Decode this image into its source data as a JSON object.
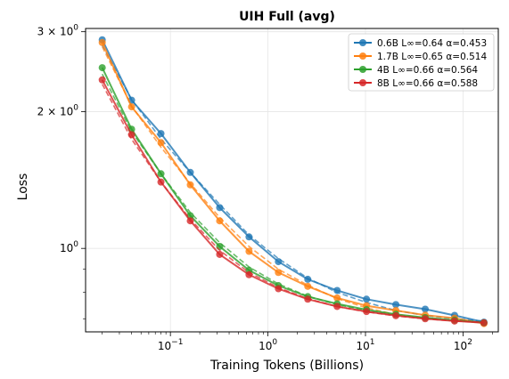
{
  "chart_data": {
    "type": "line",
    "title": "UIH Full (avg)",
    "xlabel": "Training Tokens (Billions)",
    "ylabel": "Loss",
    "xscale": "log",
    "yscale": "log",
    "xlim": [
      0.0135,
      230
    ],
    "ylim": [
      0.655,
      3.05
    ],
    "grid": true,
    "legend_position": "top-right",
    "x_ticks": [
      {
        "value": 0.1,
        "base": "10",
        "exp": "−1"
      },
      {
        "value": 1,
        "base": "10",
        "exp": "0"
      },
      {
        "value": 10,
        "base": "10",
        "exp": "1"
      },
      {
        "value": 100,
        "base": "10",
        "exp": "2"
      }
    ],
    "y_ticks": [
      {
        "value": 1,
        "base": "10",
        "exp": "0"
      },
      {
        "value": 2,
        "base": "2 × 10",
        "exp": "0"
      },
      {
        "value": 3,
        "base": "3 × 10",
        "exp": "0"
      }
    ],
    "x": [
      0.02,
      0.04,
      0.08,
      0.16,
      0.32,
      0.64,
      1.28,
      2.56,
      5.12,
      10.24,
      20.48,
      40.96,
      81.92,
      163.84
    ],
    "series": [
      {
        "name": "0.6B L∞=0.64 α=0.453",
        "color": "#1f77b4",
        "values": [
          2.88,
          2.12,
          1.79,
          1.47,
          1.23,
          1.06,
          0.935,
          0.855,
          0.808,
          0.773,
          0.752,
          0.735,
          0.712,
          0.688
        ],
        "fit": [
          2.8,
          2.13,
          1.74,
          1.47,
          1.25,
          1.07,
          0.95,
          0.86,
          0.8,
          0.76,
          0.73,
          0.712,
          0.7,
          0.692
        ]
      },
      {
        "name": "1.7B L∞=0.65 α=0.514",
        "color": "#ff7f0e",
        "values": [
          2.84,
          2.05,
          1.71,
          1.38,
          1.15,
          0.985,
          0.885,
          0.825,
          0.778,
          0.748,
          0.73,
          0.713,
          0.702,
          0.683
        ],
        "fit": [
          2.78,
          2.06,
          1.67,
          1.39,
          1.17,
          1.01,
          0.9,
          0.83,
          0.775,
          0.74,
          0.715,
          0.702,
          0.693,
          0.685
        ]
      },
      {
        "name": "4B L∞=0.66 α=0.564",
        "color": "#2ca02c",
        "values": [
          2.5,
          1.83,
          1.46,
          1.18,
          1.01,
          0.895,
          0.828,
          0.783,
          0.755,
          0.733,
          0.716,
          0.704,
          0.695,
          0.686
        ],
        "fit": [
          2.42,
          1.81,
          1.46,
          1.2,
          1.03,
          0.91,
          0.835,
          0.785,
          0.752,
          0.73,
          0.713,
          0.702,
          0.694,
          0.688
        ]
      },
      {
        "name": "8B L∞=0.66 α=0.588",
        "color": "#d62728",
        "values": [
          2.35,
          1.78,
          1.4,
          1.15,
          0.97,
          0.875,
          0.815,
          0.773,
          0.745,
          0.726,
          0.711,
          0.7,
          0.692,
          0.686
        ],
        "fit": [
          2.3,
          1.74,
          1.4,
          1.16,
          0.99,
          0.885,
          0.82,
          0.775,
          0.745,
          0.725,
          0.71,
          0.7,
          0.692,
          0.687
        ]
      }
    ]
  }
}
